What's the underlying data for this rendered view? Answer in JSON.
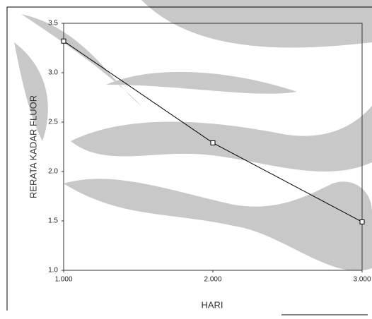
{
  "chart_data": {
    "type": "line",
    "x_label": "HARI",
    "y_label": "RERATA KADAR FLUOR",
    "x": [
      1,
      2,
      3
    ],
    "series": [
      {
        "color": "#000000",
        "values": [
          3.32,
          2.29,
          1.49
        ]
      }
    ],
    "xlim": [
      1,
      3
    ],
    "xticks": [
      {
        "value": 1,
        "label": "1.000"
      },
      {
        "value": 2,
        "label": "2.000"
      },
      {
        "value": 3,
        "label": "3.000"
      }
    ],
    "ylim": [
      1,
      3.5
    ],
    "yticks": [
      {
        "value": 1,
        "label": "1.0"
      },
      {
        "value": 1.5,
        "label": "1.5"
      },
      {
        "value": 2,
        "label": "2.0"
      },
      {
        "value": 2.5,
        "label": "2.5"
      },
      {
        "value": 3,
        "label": "3.0"
      },
      {
        "value": 3.5,
        "label": "3.5"
      }
    ]
  }
}
